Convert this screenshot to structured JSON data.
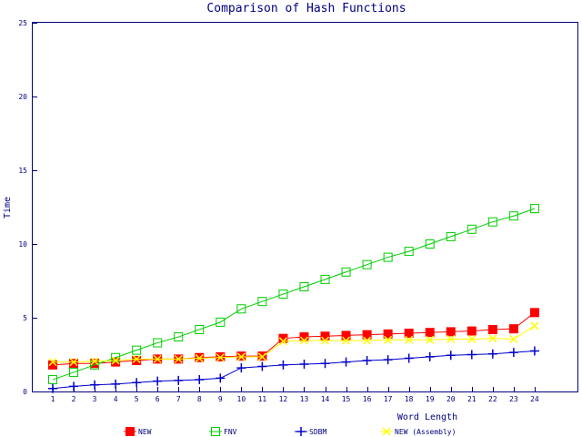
{
  "chart_data": {
    "type": "line",
    "title": "Comparison of Hash Functions",
    "xlabel": "Word Length",
    "ylabel": "Time",
    "ylim": [
      0,
      25
    ],
    "yticks": [
      0,
      5,
      10,
      15,
      20,
      25
    ],
    "x": [
      1,
      2,
      3,
      4,
      5,
      6,
      7,
      8,
      9,
      10,
      11,
      12,
      13,
      14,
      15,
      16,
      17,
      18,
      19,
      20,
      21,
      22,
      23,
      24
    ],
    "grid": false,
    "legend_position": "bottom",
    "series": [
      {
        "name": "NEW",
        "color": "#ff0000",
        "marker": "filled-square",
        "values": [
          1.8,
          1.9,
          1.9,
          2.0,
          2.1,
          2.2,
          2.2,
          2.3,
          2.35,
          2.4,
          2.4,
          3.6,
          3.7,
          3.75,
          3.8,
          3.85,
          3.9,
          3.95,
          4.0,
          4.05,
          4.1,
          4.2,
          4.25,
          5.35
        ]
      },
      {
        "name": "FNV",
        "color": "#00cc00",
        "marker": "open-square",
        "values": [
          0.8,
          1.3,
          1.8,
          2.3,
          2.8,
          3.3,
          3.7,
          4.2,
          4.7,
          5.6,
          6.1,
          6.6,
          7.1,
          7.6,
          8.1,
          8.6,
          9.1,
          9.5,
          10.0,
          10.5,
          11.0,
          11.5,
          11.9,
          12.4
        ]
      },
      {
        "name": "SDBM",
        "color": "#0000cc",
        "marker": "plus",
        "values": [
          0.2,
          0.35,
          0.45,
          0.5,
          0.6,
          0.7,
          0.75,
          0.8,
          0.9,
          1.6,
          1.7,
          1.8,
          1.85,
          1.9,
          2.0,
          2.1,
          2.15,
          2.25,
          2.35,
          2.45,
          2.5,
          2.55,
          2.65,
          2.75
        ]
      },
      {
        "name": "NEW (Assembly)",
        "color": "#ffff00",
        "marker": "cross",
        "values": [
          2.0,
          2.0,
          2.05,
          2.1,
          2.2,
          2.2,
          2.2,
          2.25,
          2.3,
          2.35,
          2.35,
          3.4,
          3.45,
          3.45,
          3.45,
          3.45,
          3.5,
          3.5,
          3.5,
          3.55,
          3.55,
          3.6,
          3.55,
          4.45
        ]
      }
    ]
  }
}
